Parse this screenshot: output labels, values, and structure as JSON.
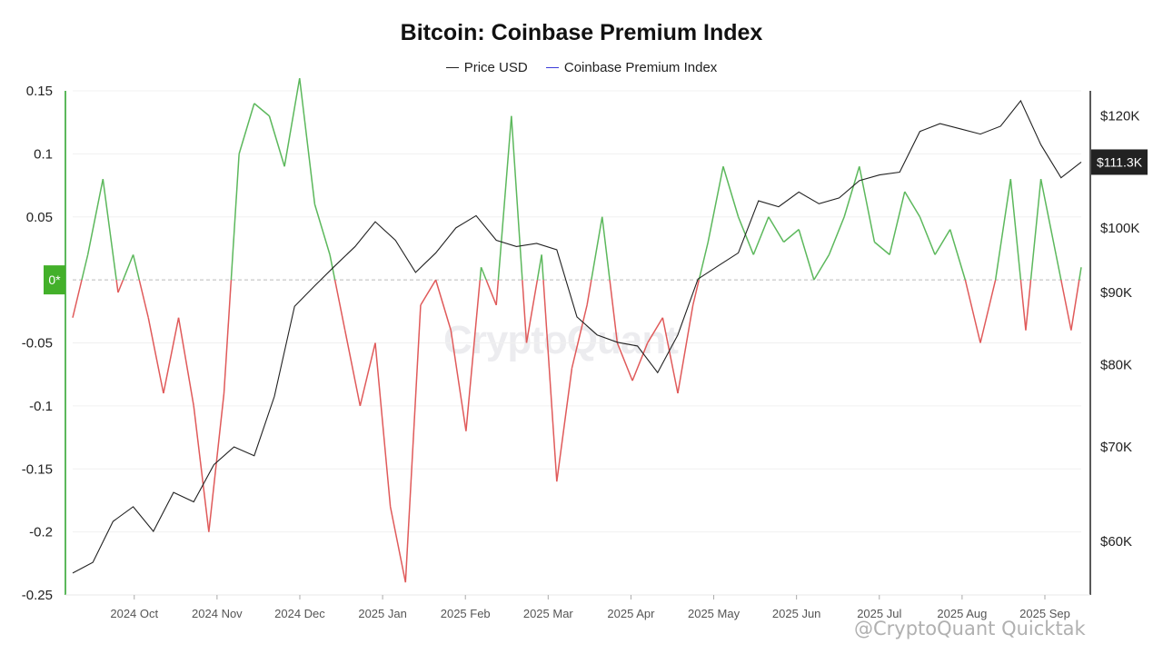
{
  "chart_data": {
    "type": "line",
    "title": "Bitcoin: Coinbase Premium Index",
    "legend": [
      {
        "label": "Price USD",
        "color": "#222222"
      },
      {
        "label": "Coinbase Premium Index",
        "color": "#3b3bd9"
      }
    ],
    "x_ticks": [
      "2024 Oct",
      "2024 Nov",
      "2024 Dec",
      "2025 Jan",
      "2025 Feb",
      "2025 Mar",
      "2025 Apr",
      "2025 May",
      "2025 Jun",
      "2025 Jul",
      "2025 Aug",
      "2025 Sep"
    ],
    "x_range": [
      0,
      100
    ],
    "left_axis": {
      "ticks": [
        "0.15",
        "0.1",
        "0.05",
        "-0.05",
        "-0.1",
        "-0.15",
        "-0.2",
        "-0.25"
      ],
      "range": [
        -0.25,
        0.15
      ],
      "zero_label": "0*"
    },
    "right_axis": {
      "ticks": [
        "$120K",
        "$100K",
        "$90K",
        "$80K",
        "$70K",
        "$60K"
      ],
      "range": [
        55000,
        125000
      ],
      "scale": "log",
      "last_value_label": "$111.3K"
    },
    "colors": {
      "positive": "#5cb85c",
      "negative": "#e05a5a",
      "price": "#222222",
      "zero_line": "#bbbbbb",
      "badge": "#222222",
      "zero_badge": "#43b02a"
    },
    "premium_index": {
      "x": [
        0,
        1.5,
        3,
        4.5,
        6,
        7.5,
        9,
        10.5,
        12,
        13.5,
        15,
        16.5,
        18,
        19.5,
        21,
        22.5,
        24,
        25.5,
        27,
        28.5,
        30,
        31.5,
        33,
        34.5,
        36,
        37.5,
        39,
        40.5,
        42,
        43.5,
        45,
        46.5,
        48,
        49.5,
        51,
        52.5,
        54,
        55.5,
        57,
        58.5,
        60,
        61.5,
        63,
        64.5,
        66,
        67.5,
        69,
        70.5,
        72,
        73.5,
        75,
        76.5,
        78,
        79.5,
        81,
        82.5,
        84,
        85.5,
        87,
        88.5,
        90,
        91.5,
        93,
        94.5,
        96,
        97.5,
        99,
        100
      ],
      "values": [
        -0.03,
        0.02,
        0.08,
        -0.01,
        0.02,
        -0.03,
        -0.09,
        -0.03,
        -0.1,
        -0.2,
        -0.09,
        0.1,
        0.14,
        0.13,
        0.09,
        0.16,
        0.06,
        0.02,
        -0.04,
        -0.1,
        -0.05,
        -0.18,
        -0.24,
        -0.02,
        0.0,
        -0.04,
        -0.12,
        0.01,
        -0.02,
        0.13,
        -0.05,
        0.02,
        -0.16,
        -0.07,
        -0.02,
        0.05,
        -0.05,
        -0.08,
        -0.05,
        -0.03,
        -0.09,
        -0.02,
        0.03,
        0.09,
        0.05,
        0.02,
        0.05,
        0.03,
        0.04,
        0.0,
        0.02,
        0.05,
        0.09,
        0.03,
        0.02,
        0.07,
        0.05,
        0.02,
        0.04,
        0.0,
        -0.05,
        0.0,
        0.08,
        -0.04,
        0.08,
        0.02,
        -0.04,
        0.01
      ]
    },
    "price_usd": {
      "x": [
        0,
        2,
        4,
        6,
        8,
        10,
        12,
        14,
        16,
        18,
        20,
        22,
        24,
        26,
        28,
        30,
        32,
        34,
        36,
        38,
        40,
        42,
        44,
        46,
        48,
        50,
        52,
        54,
        56,
        58,
        60,
        62,
        64,
        66,
        68,
        70,
        72,
        74,
        76,
        78,
        80,
        82,
        84,
        86,
        88,
        90,
        92,
        94,
        96,
        98,
        100
      ],
      "values": [
        57000,
        58000,
        62000,
        63500,
        61000,
        65000,
        64000,
        68000,
        70000,
        69000,
        76000,
        88000,
        91000,
        94000,
        97000,
        101000,
        98000,
        93000,
        96000,
        100000,
        102000,
        98000,
        97000,
        97500,
        96500,
        86500,
        84000,
        83000,
        82500,
        79000,
        84000,
        92000,
        94000,
        96000,
        104500,
        103500,
        106000,
        104000,
        105000,
        108000,
        109000,
        109500,
        117000,
        118500,
        117500,
        116500,
        118000,
        123000,
        114500,
        108500,
        111300
      ]
    }
  }
}
